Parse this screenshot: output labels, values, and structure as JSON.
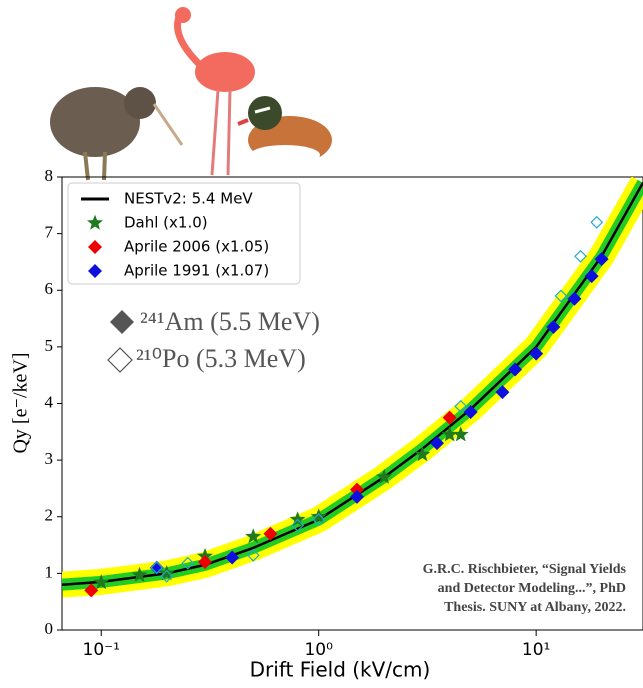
{
  "chart_data": {
    "type": "scatter",
    "x_label": "Drift Field (kV/cm)",
    "y_label": "Qy [e⁻/keV]",
    "log_x": true,
    "xlim": [
      0.066,
      31
    ],
    "ylim": [
      0,
      8
    ],
    "xticks": [
      {
        "value": 0.1,
        "label": "10⁻¹"
      },
      {
        "value": 1,
        "label": "10⁰"
      },
      {
        "value": 10,
        "label": "10¹"
      }
    ],
    "yticks": [
      0,
      1,
      2,
      3,
      4,
      5,
      6,
      7,
      8
    ],
    "legend_position": "upper left",
    "series": [
      {
        "name": "NESTv2: 5.4 MeV",
        "marker": "line",
        "color": "#000000",
        "x": [
          0.066,
          0.1,
          0.2,
          0.3,
          0.5,
          1,
          2,
          3,
          5,
          10,
          20,
          31
        ],
        "values": [
          0.8,
          0.85,
          1.0,
          1.15,
          1.45,
          1.95,
          2.7,
          3.2,
          3.9,
          5.0,
          6.6,
          7.9
        ]
      },
      {
        "name": "Dahl (x1.0)",
        "marker": "star",
        "color": "#1f7a1f",
        "x": [
          0.1,
          0.15,
          0.2,
          0.3,
          0.5,
          0.8,
          1.0,
          2,
          3,
          4,
          4.5
        ],
        "values": [
          0.84,
          0.97,
          1.0,
          1.3,
          1.65,
          1.95,
          2.0,
          2.7,
          3.1,
          3.45,
          3.45
        ]
      },
      {
        "name": "Aprile 2006 (x1.05)",
        "marker": "diamond",
        "color": "#ee0000",
        "x": [
          0.09,
          0.3,
          0.6,
          1.5,
          4
        ],
        "values": [
          0.7,
          1.2,
          1.7,
          2.48,
          3.75
        ]
      },
      {
        "name": "Aprile 1991 (x1.07)",
        "marker": "diamond",
        "color": "#1010dd",
        "x": [
          0.18,
          0.4,
          1.5,
          3.5,
          5,
          7,
          8,
          10,
          12,
          15,
          18,
          20
        ],
        "values": [
          1.1,
          1.28,
          2.35,
          3.3,
          3.85,
          4.2,
          4.6,
          4.88,
          5.35,
          5.85,
          6.25,
          6.55
        ]
      },
      {
        "marker": "open-diamond",
        "color": "#22aacc",
        "x": [
          0.18,
          0.2,
          0.25,
          0.5,
          0.8,
          1.0,
          4.5,
          13,
          16,
          19
        ],
        "values": [
          1.1,
          0.95,
          1.18,
          1.32,
          1.85,
          1.95,
          3.95,
          5.9,
          6.6,
          7.2
        ]
      }
    ],
    "annotations": [
      "²⁴¹Am (5.5 MeV)",
      "²¹⁰Po (5.3 MeV)"
    ],
    "credit": [
      "G.R.C. Rischbieter, “Signal Yields",
      "and Detector Modeling...”, PhD",
      "Thesis. SUNY at Albany, 2022."
    ]
  }
}
